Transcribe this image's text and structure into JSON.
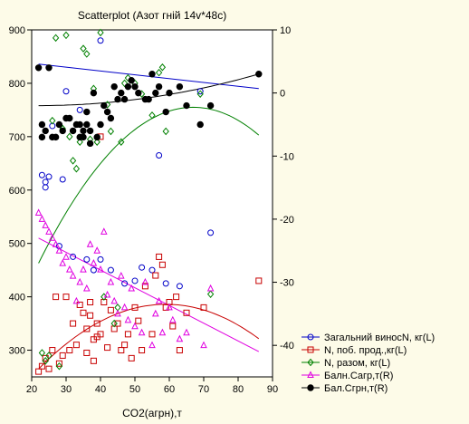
{
  "chart_data": {
    "type": "scatter",
    "title": "Scatterplot (Азот гній 14v*48c)",
    "xlabel": "CO2(агрн),т",
    "xlim": [
      20,
      90
    ],
    "xticks": [
      "20",
      "30",
      "40",
      "50",
      "60",
      "70",
      "80",
      "90"
    ],
    "ylim_left": [
      250,
      900
    ],
    "yticks_left": [
      "300",
      "400",
      "500",
      "600",
      "700",
      "800",
      "900"
    ],
    "ylim_right": [
      -45,
      10
    ],
    "yticks_right": [
      "-40",
      "-30",
      "-20",
      "-10",
      "0",
      "10"
    ],
    "legend_position": "bottom-right",
    "grid": false,
    "series": [
      {
        "name": "Загальний виносN, кг(L)",
        "axis": "left",
        "marker": "circle-open",
        "color": "#0000c8",
        "x": [
          23,
          24,
          24,
          25,
          26,
          28,
          29,
          30,
          32,
          34,
          36,
          38,
          40,
          40,
          43,
          47,
          50,
          52,
          55,
          57,
          59,
          63,
          69,
          72
        ],
        "y": [
          628,
          615,
          605,
          625,
          720,
          495,
          620,
          785,
          475,
          750,
          470,
          450,
          880,
          470,
          450,
          425,
          430,
          455,
          450,
          665,
          425,
          420,
          785,
          520
        ],
        "fit": {
          "type": "linear",
          "x": [
            22,
            86
          ],
          "y": [
            836,
            790
          ]
        }
      },
      {
        "name": "N, поб. прод.,кг(L)",
        "axis": "left",
        "marker": "square-open",
        "color": "#c80000",
        "x": [
          22,
          23,
          24,
          25,
          26,
          27,
          28,
          29,
          30,
          31,
          32,
          33,
          34,
          35,
          36,
          36,
          37,
          37,
          38,
          38,
          39,
          39,
          40,
          40,
          41,
          42,
          43,
          44,
          45,
          46,
          47,
          48,
          49,
          50,
          51,
          52,
          53,
          55,
          56,
          57,
          58,
          59,
          60,
          61,
          62,
          63,
          65,
          70,
          86
        ],
        "y": [
          260,
          270,
          285,
          265,
          300,
          400,
          275,
          290,
          400,
          300,
          350,
          310,
          385,
          370,
          340,
          295,
          365,
          390,
          320,
          280,
          325,
          350,
          330,
          700,
          390,
          305,
          375,
          340,
          350,
          300,
          310,
          330,
          285,
          380,
          355,
          300,
          420,
          330,
          440,
          475,
          460,
          380,
          390,
          345,
          400,
          300,
          370,
          380,
          430
        ],
        "fit": {
          "type": "quadratic",
          "x": [
            22,
            86
          ],
          "y": [
            265,
            357
          ],
          "vertex": [
            59,
            386
          ]
        }
      },
      {
        "name": "N, разом, кг(L)",
        "axis": "left",
        "marker": "diamond-open",
        "color": "#008000",
        "x": [
          23,
          24,
          25,
          26,
          27,
          28,
          29,
          30,
          31,
          32,
          33,
          34,
          35,
          36,
          37,
          38,
          39,
          40,
          41,
          42,
          43,
          44,
          45,
          46,
          47,
          48,
          50,
          52,
          55,
          57,
          58,
          59,
          69,
          72
        ],
        "y": [
          295,
          280,
          290,
          730,
          885,
          270,
          715,
          890,
          700,
          655,
          640,
          690,
          865,
          855,
          695,
          790,
          690,
          895,
          400,
          760,
          710,
          350,
          380,
          690,
          800,
          810,
          800,
          780,
          740,
          820,
          830,
          710,
          780,
          405
        ],
        "fit": {
          "type": "quadratic",
          "x": [
            22,
            86
          ],
          "y": [
            463,
            703
          ],
          "vertex": [
            67,
            755
          ]
        }
      },
      {
        "name": "Бaлн.Сaгр,т(R)",
        "axis": "right",
        "marker": "triangle-open",
        "color": "#e000e0",
        "x": [
          22,
          23,
          24,
          25,
          26,
          27,
          28,
          29,
          30,
          31,
          32,
          33,
          34,
          35,
          36,
          37,
          38,
          39,
          40,
          41,
          42,
          43,
          44,
          45,
          46,
          47,
          48,
          49,
          50,
          52,
          53,
          55,
          56,
          57,
          58,
          60,
          61,
          63,
          65,
          70,
          72
        ],
        "y": [
          -19,
          -20,
          -21,
          -22,
          -23,
          -24,
          -25,
          -27,
          -26,
          -28,
          -29,
          -33,
          -30,
          -28,
          -31,
          -24,
          -27,
          -25,
          -28,
          -22,
          -32,
          -30,
          -33,
          -35,
          -29,
          -34,
          -36,
          -31,
          -37,
          -38,
          -30,
          -40,
          -35,
          -33,
          -38,
          -34,
          -36,
          -39,
          -38,
          -40,
          -31
        ],
        "fit": {
          "type": "linear",
          "x": [
            22,
            86
          ],
          "y": [
            -23,
            -41
          ]
        }
      },
      {
        "name": "Бaл.Сгрн,т(R)",
        "axis": "right",
        "marker": "circle-filled",
        "color": "#000000",
        "x": [
          22,
          23,
          23,
          24,
          25,
          26,
          27,
          28,
          29,
          30,
          31,
          32,
          33,
          34,
          34,
          35,
          35,
          36,
          36,
          37,
          37,
          38,
          39,
          40,
          41,
          42,
          43,
          44,
          45,
          46,
          47,
          48,
          49,
          50,
          51,
          53,
          54,
          55,
          56,
          57,
          59,
          60,
          63,
          65,
          69,
          72,
          86
        ],
        "y": [
          4,
          -5,
          -7,
          -6,
          4,
          -7,
          -7,
          -5,
          -6,
          -4,
          -4,
          -6,
          -5,
          -5,
          -7,
          -6,
          -7,
          -5,
          -3,
          -8,
          -6,
          0,
          -7,
          -5,
          -2,
          -3,
          -4,
          1,
          -1,
          0,
          -1,
          1,
          2,
          1,
          0,
          -1,
          -1,
          3,
          0,
          1,
          -3,
          0,
          1,
          -2,
          -5,
          -2,
          3
        ],
        "fit": {
          "type": "quadratic",
          "x": [
            22,
            86
          ],
          "y": [
            -2,
            3
          ],
          "vertex": [
            22,
            -2
          ]
        }
      }
    ]
  }
}
